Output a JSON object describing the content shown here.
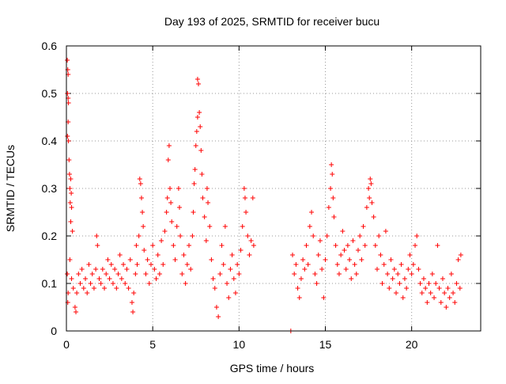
{
  "chart_data": {
    "type": "scatter",
    "title": "Day 193 of 2025, SRMTID for receiver bucu",
    "xlabel": "GPS time / hours",
    "ylabel": "SRMTID / TECUs",
    "xlim": [
      0,
      24
    ],
    "ylim": [
      0,
      0.6
    ],
    "xticks": [
      0,
      5,
      10,
      15,
      20
    ],
    "yticks": [
      0,
      0.1,
      0.2,
      0.3,
      0.4,
      0.5,
      0.6
    ],
    "xtick_labels": [
      "0",
      "5",
      "10",
      "15",
      "20"
    ],
    "ytick_labels": [
      "0",
      "0.1",
      "0.2",
      "0.3",
      "0.4",
      "0.5",
      "0.6"
    ],
    "grid": true,
    "marker": "+",
    "color": "#ff0000",
    "series": [
      {
        "name": "SRMTID",
        "points": [
          [
            0.05,
            0.57
          ],
          [
            0.08,
            0.55
          ],
          [
            0.1,
            0.54
          ],
          [
            0.06,
            0.5
          ],
          [
            0.1,
            0.49
          ],
          [
            0.12,
            0.48
          ],
          [
            0.1,
            0.44
          ],
          [
            0.06,
            0.41
          ],
          [
            0.12,
            0.4
          ],
          [
            0.15,
            0.36
          ],
          [
            0.18,
            0.33
          ],
          [
            0.25,
            0.32
          ],
          [
            0.2,
            0.3
          ],
          [
            0.28,
            0.29
          ],
          [
            0.22,
            0.27
          ],
          [
            0.3,
            0.26
          ],
          [
            0.25,
            0.23
          ],
          [
            0.35,
            0.21
          ],
          [
            0.05,
            0.12
          ],
          [
            0.1,
            0.08
          ],
          [
            0.08,
            0.06
          ],
          [
            0.2,
            0.15
          ],
          [
            0.3,
            0.11
          ],
          [
            0.4,
            0.09
          ],
          [
            0.5,
            0.05
          ],
          [
            0.55,
            0.04
          ],
          [
            0.6,
            0.08
          ],
          [
            0.7,
            0.12
          ],
          [
            0.8,
            0.1
          ],
          [
            0.9,
            0.13
          ],
          [
            1.0,
            0.09
          ],
          [
            1.1,
            0.11
          ],
          [
            1.2,
            0.08
          ],
          [
            1.3,
            0.14
          ],
          [
            1.4,
            0.1
          ],
          [
            1.5,
            0.12
          ],
          [
            1.6,
            0.09
          ],
          [
            1.7,
            0.13
          ],
          [
            1.75,
            0.2
          ],
          [
            1.8,
            0.18
          ],
          [
            1.9,
            0.11
          ],
          [
            2.0,
            0.1
          ],
          [
            2.1,
            0.13
          ],
          [
            2.2,
            0.09
          ],
          [
            2.3,
            0.12
          ],
          [
            2.4,
            0.15
          ],
          [
            2.5,
            0.11
          ],
          [
            2.6,
            0.14
          ],
          [
            2.7,
            0.1
          ],
          [
            2.8,
            0.13
          ],
          [
            2.9,
            0.09
          ],
          [
            3.0,
            0.12
          ],
          [
            3.1,
            0.16
          ],
          [
            3.2,
            0.11
          ],
          [
            3.3,
            0.14
          ],
          [
            3.4,
            0.1
          ],
          [
            3.5,
            0.13
          ],
          [
            3.6,
            0.09
          ],
          [
            3.7,
            0.15
          ],
          [
            3.8,
            0.06
          ],
          [
            3.85,
            0.04
          ],
          [
            3.9,
            0.08
          ],
          [
            4.0,
            0.12
          ],
          [
            4.05,
            0.18
          ],
          [
            4.1,
            0.14
          ],
          [
            4.2,
            0.2
          ],
          [
            4.25,
            0.32
          ],
          [
            4.3,
            0.31
          ],
          [
            4.35,
            0.28
          ],
          [
            4.4,
            0.25
          ],
          [
            4.45,
            0.22
          ],
          [
            4.5,
            0.17
          ],
          [
            4.6,
            0.12
          ],
          [
            4.7,
            0.15
          ],
          [
            4.8,
            0.1
          ],
          [
            4.9,
            0.14
          ],
          [
            5.0,
            0.18
          ],
          [
            5.1,
            0.13
          ],
          [
            5.2,
            0.11
          ],
          [
            5.3,
            0.16
          ],
          [
            5.4,
            0.12
          ],
          [
            5.5,
            0.19
          ],
          [
            5.6,
            0.14
          ],
          [
            5.7,
            0.21
          ],
          [
            5.8,
            0.25
          ],
          [
            5.85,
            0.28
          ],
          [
            5.9,
            0.36
          ],
          [
            5.95,
            0.39
          ],
          [
            6.0,
            0.3
          ],
          [
            6.05,
            0.27
          ],
          [
            6.1,
            0.23
          ],
          [
            6.2,
            0.18
          ],
          [
            6.3,
            0.15
          ],
          [
            6.4,
            0.22
          ],
          [
            6.5,
            0.3
          ],
          [
            6.55,
            0.26
          ],
          [
            6.6,
            0.2
          ],
          [
            6.7,
            0.12
          ],
          [
            6.8,
            0.16
          ],
          [
            6.9,
            0.1
          ],
          [
            7.0,
            0.14
          ],
          [
            7.1,
            0.18
          ],
          [
            7.2,
            0.13
          ],
          [
            7.3,
            0.2
          ],
          [
            7.35,
            0.25
          ],
          [
            7.4,
            0.31
          ],
          [
            7.45,
            0.34
          ],
          [
            7.5,
            0.39
          ],
          [
            7.55,
            0.42
          ],
          [
            7.6,
            0.45
          ],
          [
            7.6,
            0.53
          ],
          [
            7.65,
            0.52
          ],
          [
            7.7,
            0.46
          ],
          [
            7.75,
            0.43
          ],
          [
            7.8,
            0.38
          ],
          [
            7.85,
            0.33
          ],
          [
            7.9,
            0.28
          ],
          [
            8.0,
            0.24
          ],
          [
            8.1,
            0.19
          ],
          [
            8.15,
            0.3
          ],
          [
            8.2,
            0.27
          ],
          [
            8.3,
            0.22
          ],
          [
            8.4,
            0.15
          ],
          [
            8.5,
            0.11
          ],
          [
            8.6,
            0.09
          ],
          [
            8.7,
            0.05
          ],
          [
            8.8,
            0.03
          ],
          [
            8.9,
            0.12
          ],
          [
            9.0,
            0.18
          ],
          [
            9.1,
            0.14
          ],
          [
            9.2,
            0.22
          ],
          [
            9.3,
            0.1
          ],
          [
            9.4,
            0.07
          ],
          [
            9.5,
            0.13
          ],
          [
            9.6,
            0.16
          ],
          [
            9.7,
            0.11
          ],
          [
            9.8,
            0.08
          ],
          [
            9.9,
            0.14
          ],
          [
            10.0,
            0.12
          ],
          [
            10.1,
            0.17
          ],
          [
            10.2,
            0.22
          ],
          [
            10.3,
            0.3
          ],
          [
            10.35,
            0.28
          ],
          [
            10.4,
            0.25
          ],
          [
            10.5,
            0.2
          ],
          [
            10.6,
            0.16
          ],
          [
            10.7,
            0.19
          ],
          [
            10.8,
            0.28
          ],
          [
            10.85,
            0.18
          ],
          [
            13.0,
            0.0
          ],
          [
            13.1,
            0.16
          ],
          [
            13.2,
            0.12
          ],
          [
            13.3,
            0.14
          ],
          [
            13.4,
            0.09
          ],
          [
            13.5,
            0.07
          ],
          [
            13.6,
            0.11
          ],
          [
            13.7,
            0.15
          ],
          [
            13.8,
            0.13
          ],
          [
            13.9,
            0.18
          ],
          [
            14.0,
            0.14
          ],
          [
            14.1,
            0.22
          ],
          [
            14.2,
            0.25
          ],
          [
            14.3,
            0.2
          ],
          [
            14.4,
            0.12
          ],
          [
            14.5,
            0.1
          ],
          [
            14.6,
            0.16
          ],
          [
            14.7,
            0.19
          ],
          [
            14.8,
            0.13
          ],
          [
            14.9,
            0.07
          ],
          [
            15.0,
            0.15
          ],
          [
            15.1,
            0.2
          ],
          [
            15.2,
            0.26
          ],
          [
            15.3,
            0.3
          ],
          [
            15.35,
            0.35
          ],
          [
            15.4,
            0.33
          ],
          [
            15.45,
            0.28
          ],
          [
            15.5,
            0.24
          ],
          [
            15.6,
            0.18
          ],
          [
            15.7,
            0.14
          ],
          [
            15.8,
            0.12
          ],
          [
            15.9,
            0.16
          ],
          [
            16.0,
            0.21
          ],
          [
            16.1,
            0.17
          ],
          [
            16.2,
            0.13
          ],
          [
            16.3,
            0.18
          ],
          [
            16.4,
            0.15
          ],
          [
            16.5,
            0.11
          ],
          [
            16.6,
            0.19
          ],
          [
            16.7,
            0.14
          ],
          [
            16.8,
            0.12
          ],
          [
            16.9,
            0.17
          ],
          [
            17.0,
            0.2
          ],
          [
            17.1,
            0.15
          ],
          [
            17.2,
            0.22
          ],
          [
            17.3,
            0.18
          ],
          [
            17.4,
            0.26
          ],
          [
            17.5,
            0.3
          ],
          [
            17.55,
            0.28
          ],
          [
            17.6,
            0.32
          ],
          [
            17.65,
            0.31
          ],
          [
            17.7,
            0.27
          ],
          [
            17.8,
            0.24
          ],
          [
            17.9,
            0.18
          ],
          [
            18.0,
            0.13
          ],
          [
            18.1,
            0.2
          ],
          [
            18.2,
            0.16
          ],
          [
            18.3,
            0.1
          ],
          [
            18.4,
            0.14
          ],
          [
            18.5,
            0.21
          ],
          [
            18.6,
            0.12
          ],
          [
            18.7,
            0.09
          ],
          [
            18.8,
            0.15
          ],
          [
            18.9,
            0.11
          ],
          [
            19.0,
            0.13
          ],
          [
            19.1,
            0.08
          ],
          [
            19.2,
            0.12
          ],
          [
            19.3,
            0.1
          ],
          [
            19.4,
            0.14
          ],
          [
            19.5,
            0.07
          ],
          [
            19.6,
            0.11
          ],
          [
            19.7,
            0.09
          ],
          [
            19.8,
            0.13
          ],
          [
            19.9,
            0.16
          ],
          [
            20.0,
            0.12
          ],
          [
            20.1,
            0.14
          ],
          [
            20.2,
            0.18
          ],
          [
            20.3,
            0.2
          ],
          [
            20.4,
            0.13
          ],
          [
            20.5,
            0.1
          ],
          [
            20.6,
            0.08
          ],
          [
            20.7,
            0.11
          ],
          [
            20.8,
            0.09
          ],
          [
            20.9,
            0.06
          ],
          [
            21.0,
            0.1
          ],
          [
            21.1,
            0.08
          ],
          [
            21.2,
            0.12
          ],
          [
            21.3,
            0.07
          ],
          [
            21.4,
            0.1
          ],
          [
            21.5,
            0.18
          ],
          [
            21.6,
            0.09
          ],
          [
            21.7,
            0.06
          ],
          [
            21.8,
            0.11
          ],
          [
            21.9,
            0.08
          ],
          [
            22.0,
            0.05
          ],
          [
            22.1,
            0.09
          ],
          [
            22.2,
            0.07
          ],
          [
            22.3,
            0.12
          ],
          [
            22.4,
            0.08
          ],
          [
            22.5,
            0.06
          ],
          [
            22.6,
            0.1
          ],
          [
            22.7,
            0.15
          ],
          [
            22.8,
            0.09
          ],
          [
            22.85,
            0.16
          ]
        ]
      }
    ]
  }
}
